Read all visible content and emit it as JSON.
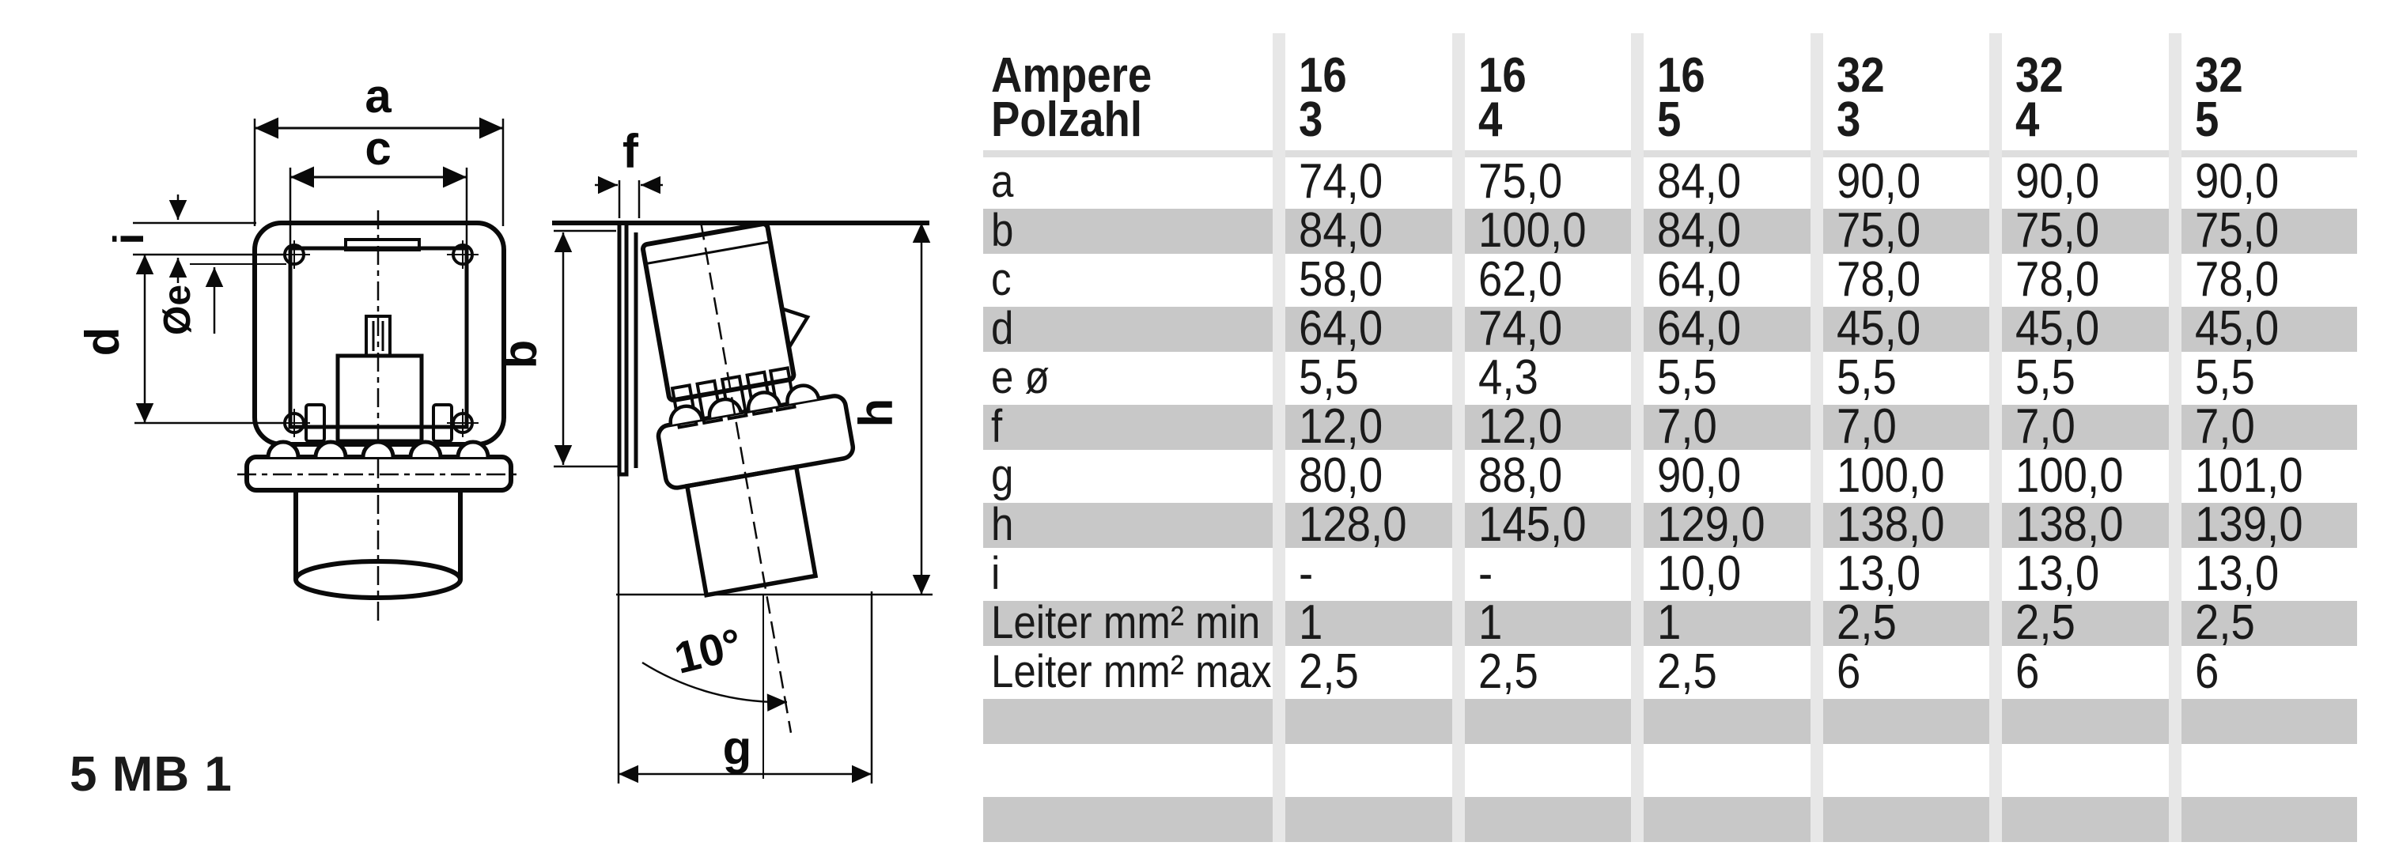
{
  "product_label": "5 MB 1",
  "drawing": {
    "front": {
      "a": "a",
      "c": "c",
      "i": "i",
      "oe": "Øe",
      "d": "d"
    },
    "side": {
      "f": "f",
      "b": "b",
      "h": "h",
      "g": "g",
      "angle": "10°"
    }
  },
  "table": {
    "header": {
      "label_line1": "Ampere",
      "label_line2": "Polzahl",
      "columns": [
        {
          "ampere": "16",
          "polzahl": "3"
        },
        {
          "ampere": "16",
          "polzahl": "4"
        },
        {
          "ampere": "16",
          "polzahl": "5"
        },
        {
          "ampere": "32",
          "polzahl": "3"
        },
        {
          "ampere": "32",
          "polzahl": "4"
        },
        {
          "ampere": "32",
          "polzahl": "5"
        }
      ]
    },
    "rows": [
      {
        "label": "a",
        "values": [
          "74,0",
          "75,0",
          "84,0",
          "90,0",
          "90,0",
          "90,0"
        ]
      },
      {
        "label": "b",
        "values": [
          "84,0",
          "100,0",
          "84,0",
          "75,0",
          "75,0",
          "75,0"
        ]
      },
      {
        "label": "c",
        "values": [
          "58,0",
          "62,0",
          "64,0",
          "78,0",
          "78,0",
          "78,0"
        ]
      },
      {
        "label": "d",
        "values": [
          "64,0",
          "74,0",
          "64,0",
          "45,0",
          "45,0",
          "45,0"
        ]
      },
      {
        "label": "e ø",
        "values": [
          "5,5",
          "4,3",
          "5,5",
          "5,5",
          "5,5",
          "5,5"
        ]
      },
      {
        "label": "f",
        "values": [
          "12,0",
          "12,0",
          "7,0",
          "7,0",
          "7,0",
          "7,0"
        ]
      },
      {
        "label": "g",
        "values": [
          "80,0",
          "88,0",
          "90,0",
          "100,0",
          "100,0",
          "101,0"
        ]
      },
      {
        "label": "h",
        "values": [
          "128,0",
          "145,0",
          "129,0",
          "138,0",
          "138,0",
          "139,0"
        ]
      },
      {
        "label": "i",
        "values": [
          "-",
          "-",
          "10,0",
          "13,0",
          "13,0",
          "13,0"
        ]
      },
      {
        "label": "Leiter mm² min",
        "values": [
          "1",
          "1",
          "1",
          "2,5",
          "2,5",
          "2,5"
        ]
      },
      {
        "label": "Leiter mm² max",
        "values": [
          "2,5",
          "2,5",
          "2,5",
          "6",
          "6",
          "6"
        ]
      },
      {
        "label": "",
        "values": [
          "",
          "",
          "",
          "",
          "",
          ""
        ]
      },
      {
        "label": "",
        "values": [
          "",
          "",
          "",
          "",
          "",
          ""
        ]
      },
      {
        "label": "",
        "values": [
          "",
          "",
          "",
          "",
          "",
          ""
        ]
      }
    ]
  },
  "colors": {
    "row_shade": "#c8c8c8",
    "header_band": "#dedede",
    "column_separator": "#e7e7e7",
    "ink": "#0a0a0a",
    "background": "#ffffff"
  }
}
